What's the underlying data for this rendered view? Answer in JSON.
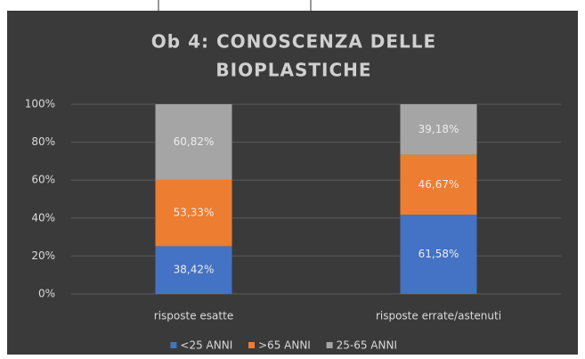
{
  "chart_data": {
    "type": "bar",
    "stacking": "percent",
    "title": [
      "Ob 4: CONOSCENZA DELLE",
      "BIOPLASTICHE"
    ],
    "categories": [
      "risposte esatte",
      "risposte errate/astenuti"
    ],
    "series": [
      {
        "name": "<25 ANNI",
        "color": "#4472c4",
        "values": [
          38.42,
          61.58
        ],
        "value_labels": [
          "38,42%",
          "61,58%"
        ]
      },
      {
        "name": ">65 ANNI",
        "color": "#ed7d31",
        "values": [
          53.33,
          46.67
        ],
        "value_labels": [
          "53,33%",
          "46,67%"
        ]
      },
      {
        "name": "25-65 ANNI",
        "color": "#a5a5a5",
        "values": [
          60.82,
          39.18
        ],
        "value_labels": [
          "60,82%",
          "39,18%"
        ]
      }
    ],
    "ylim": [
      0,
      100
    ],
    "yticks": [
      {
        "value": 0,
        "label": "0%"
      },
      {
        "value": 20,
        "label": "20%"
      },
      {
        "value": 40,
        "label": "40%"
      },
      {
        "value": 60,
        "label": "60%"
      },
      {
        "value": 80,
        "label": "80%"
      },
      {
        "value": 100,
        "label": "100%"
      }
    ],
    "grid": true,
    "legend": "bottom"
  }
}
